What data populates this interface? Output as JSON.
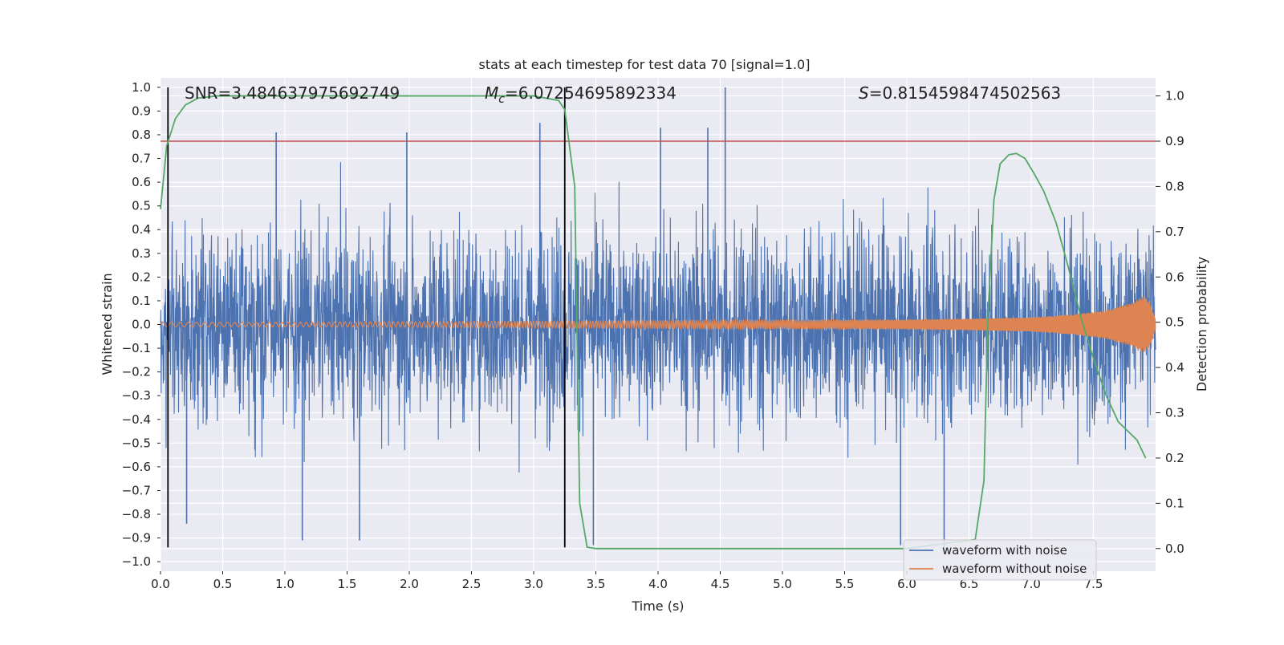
{
  "chart_data": {
    "type": "line",
    "title": "stats at each timestep for test data 70 [signal=1.0]",
    "xlabel": "Time (s)",
    "ylabel_left": "Whitened strain",
    "ylabel_right": "Detection probability",
    "xlim": [
      0.0,
      8.0
    ],
    "ylim_left": [
      -1.04,
      1.04
    ],
    "ylim_right": [
      -0.05,
      1.04
    ],
    "xticks": [
      0.0,
      0.5,
      1.0,
      1.5,
      2.0,
      2.5,
      3.0,
      3.5,
      4.0,
      4.5,
      5.0,
      5.5,
      6.0,
      6.5,
      7.0,
      7.5
    ],
    "yticks_left": [
      -1.0,
      -0.9,
      -0.8,
      -0.7,
      -0.6,
      -0.5,
      -0.4,
      -0.3,
      -0.2,
      -0.1,
      0.0,
      0.1,
      0.2,
      0.3,
      0.4,
      0.5,
      0.6,
      0.7,
      0.8,
      0.9,
      1.0
    ],
    "yticks_right": [
      0.0,
      0.1,
      0.2,
      0.3,
      0.4,
      0.5,
      0.6,
      0.7,
      0.8,
      0.9,
      1.0
    ],
    "grid": true,
    "legend_position": "lower right",
    "annotations": {
      "snr": "SNR=3.484637975692749",
      "mc_symbol": "M",
      "mc_sub": "c",
      "mc_value": "=6.07254695892334",
      "s_symbol": "S",
      "s_value": "=0.8154598474502563"
    },
    "vertical_lines_x": [
      0.06,
      3.25
    ],
    "threshold_right": 0.9,
    "series": [
      {
        "name": "waveform with noise",
        "color": "#4c72b0",
        "axis": "left",
        "description_note": "dense whitened noise, amplitude mostly within ±0.5",
        "spikes": [
          {
            "x": 0.93,
            "y": 0.81
          },
          {
            "x": 1.98,
            "y": 0.81
          },
          {
            "x": 3.05,
            "y": 0.85
          },
          {
            "x": 4.02,
            "y": 0.83
          },
          {
            "x": 4.4,
            "y": 0.83
          },
          {
            "x": 4.54,
            "y": 1.0
          },
          {
            "x": 0.21,
            "y": -0.84
          },
          {
            "x": 1.14,
            "y": -0.91
          },
          {
            "x": 1.6,
            "y": -0.91
          },
          {
            "x": 3.48,
            "y": -0.93
          },
          {
            "x": 5.95,
            "y": -0.93
          },
          {
            "x": 6.3,
            "y": -0.96
          }
        ]
      },
      {
        "name": "waveform without noise",
        "color": "#dd8452",
        "axis": "left",
        "envelope_x": [
          0.0,
          1.0,
          2.0,
          3.0,
          4.0,
          5.0,
          6.0,
          6.5,
          7.0,
          7.3,
          7.6,
          7.8,
          7.9,
          7.95,
          8.0
        ],
        "envelope_y": [
          0.01,
          0.01,
          0.012,
          0.014,
          0.016,
          0.018,
          0.02,
          0.024,
          0.03,
          0.04,
          0.06,
          0.09,
          0.12,
          0.1,
          0.02
        ]
      },
      {
        "name": "detection probability",
        "color": "#55a868",
        "axis": "right",
        "x": [
          0.0,
          0.05,
          0.12,
          0.2,
          0.3,
          0.45,
          1.0,
          2.0,
          3.0,
          3.2,
          3.25,
          3.33,
          3.37,
          3.43,
          3.5,
          4.0,
          5.0,
          6.0,
          6.55,
          6.62,
          6.65,
          6.7,
          6.75,
          6.82,
          6.88,
          6.95,
          7.02,
          7.1,
          7.2,
          7.3,
          7.4,
          7.5,
          7.6,
          7.7,
          7.85,
          7.92
        ],
        "y": [
          0.75,
          0.89,
          0.95,
          0.98,
          0.995,
          1.0,
          1.0,
          1.0,
          1.0,
          0.99,
          0.97,
          0.8,
          0.1,
          0.003,
          0.0,
          0.0,
          0.0,
          0.0,
          0.02,
          0.15,
          0.5,
          0.77,
          0.85,
          0.87,
          0.873,
          0.862,
          0.83,
          0.79,
          0.72,
          0.62,
          0.51,
          0.42,
          0.34,
          0.28,
          0.24,
          0.2
        ]
      },
      {
        "name": "threshold",
        "color": "#c44e52",
        "axis": "right"
      }
    ]
  }
}
